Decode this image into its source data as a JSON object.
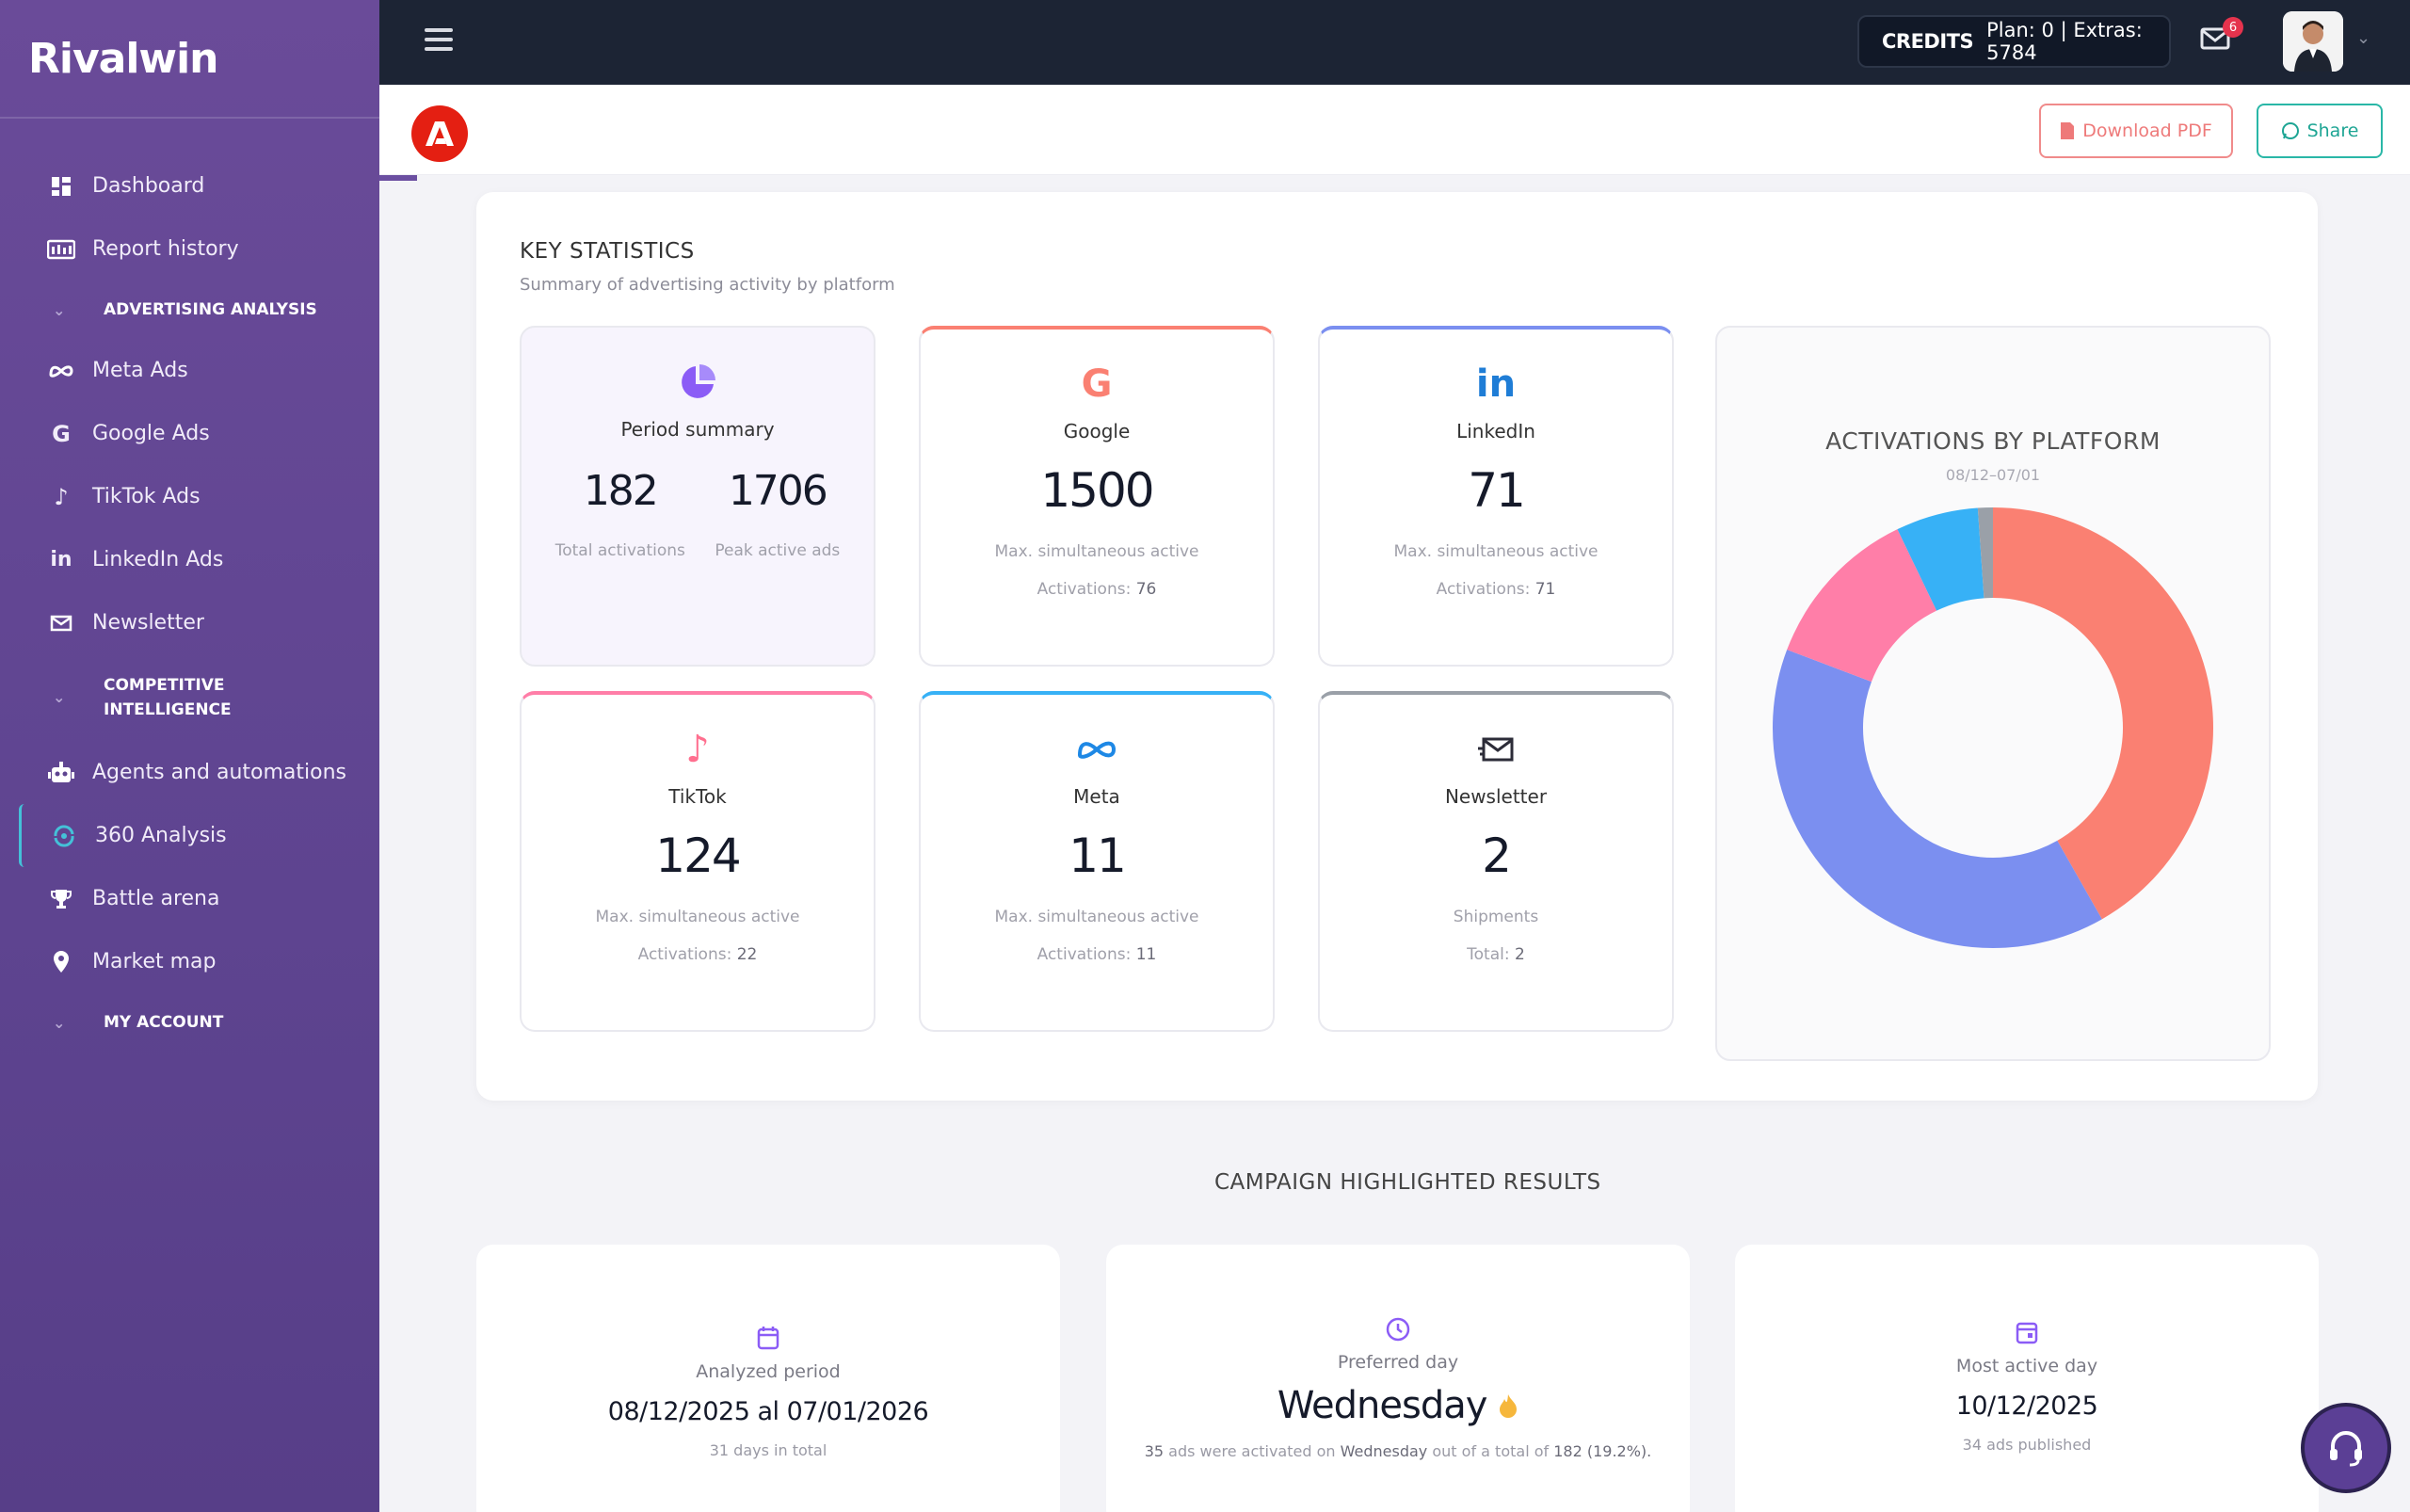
{
  "app": {
    "brand": "Rivalwin"
  },
  "sidebar": {
    "items": [
      {
        "label": "Dashboard",
        "icon": "dashboard-icon"
      },
      {
        "label": "Report history",
        "icon": "report-history-icon"
      }
    ],
    "advertising": {
      "section": "ADVERTISING ANALYSIS",
      "items": [
        {
          "label": "Meta Ads",
          "icon": "meta-icon"
        },
        {
          "label": "Google Ads",
          "icon": "google-icon"
        },
        {
          "label": "TikTok Ads",
          "icon": "tiktok-icon"
        },
        {
          "label": "LinkedIn Ads",
          "icon": "linkedin-icon"
        },
        {
          "label": "Newsletter",
          "icon": "newsletter-icon"
        }
      ]
    },
    "competitive": {
      "section_line1": "COMPETITIVE",
      "section_line2": "INTELLIGENCE",
      "items": [
        {
          "label": "Agents and automations",
          "icon": "robot-icon"
        },
        {
          "label": "360 Analysis",
          "icon": "analysis-360-icon"
        },
        {
          "label": "Battle arena",
          "icon": "trophy-icon"
        },
        {
          "label": "Market map",
          "icon": "map-pin-icon"
        }
      ]
    },
    "account": {
      "section": "MY ACCOUNT"
    }
  },
  "topbar": {
    "credits_label": "CREDITS",
    "credits_value": "Plan: 0 | Extras: 5784",
    "mail_badge": "6"
  },
  "subheader": {
    "download_pdf": "Download PDF",
    "share": "Share"
  },
  "stats": {
    "title": "KEY STATISTICS",
    "subtitle": "Summary of advertising activity by platform",
    "summary": {
      "name": "Period summary",
      "total_activations": "182",
      "total_activations_label": "Total activations",
      "peak_active": "1706",
      "peak_active_label": "Peak active ads"
    },
    "google": {
      "name": "Google",
      "value": "1500",
      "label": "Max. simultaneous active",
      "act_label": "Activations:",
      "act_value": "76"
    },
    "linkedin": {
      "name": "LinkedIn",
      "value": "71",
      "label": "Max. simultaneous active",
      "act_label": "Activations:",
      "act_value": "71"
    },
    "tiktok": {
      "name": "TikTok",
      "value": "124",
      "label": "Max. simultaneous active",
      "act_label": "Activations:",
      "act_value": "22"
    },
    "meta": {
      "name": "Meta",
      "value": "11",
      "label": "Max. simultaneous active",
      "act_label": "Activations:",
      "act_value": "11"
    },
    "newsletter": {
      "name": "Newsletter",
      "value": "2",
      "label": "Shipments",
      "act_label": "Total:",
      "act_value": "2"
    },
    "colors": {
      "google": "#fa8072",
      "linkedin": "#7b8ff0",
      "tiktok": "#ff7ea8",
      "meta": "#37b1f6",
      "newsletter": "#9aa0a8"
    }
  },
  "chart_data": {
    "type": "pie",
    "title": "ACTIVATIONS BY PLATFORM",
    "subtitle": "08/12–07/01",
    "categories": [
      "Google",
      "LinkedIn",
      "TikTok",
      "Meta",
      "Newsletter"
    ],
    "values": [
      76,
      71,
      22,
      11,
      2
    ],
    "colors": [
      "#fa8072",
      "#7b8ff0",
      "#ff7ea8",
      "#37b1f6",
      "#9aa0a8"
    ]
  },
  "highlights": {
    "title": "CAMPAIGN HIGHLIGHTED RESULTS",
    "period": {
      "label": "Analyzed period",
      "value": "08/12/2025 al 07/01/2026",
      "note": "31 days in total"
    },
    "preferred": {
      "label": "Preferred day",
      "value": "Wednesday",
      "note_count": "35",
      "note_a": "ads were activated on",
      "note_day": "Wednesday",
      "note_b": "out of a total of",
      "note_total": "182 (19.2%)."
    },
    "active_day": {
      "label": "Most active day",
      "value": "10/12/2025",
      "note": "34 ads published"
    }
  }
}
